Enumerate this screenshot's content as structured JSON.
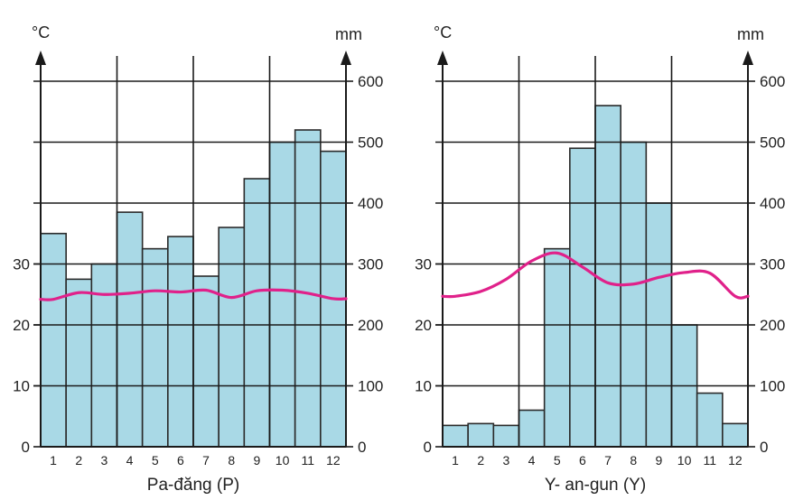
{
  "colors": {
    "bar_fill": "#a9d9e6",
    "bar_stroke": "#2a2a2a",
    "temperature_line": "#e0218a",
    "grid": "#1a1a1a",
    "text": "#222222"
  },
  "chart_data": [
    {
      "type": "bar+line",
      "xlabel": "Pa-đăng (P)",
      "left_unit": "°C",
      "right_unit": "mm",
      "left_ticks": [
        "0",
        "10",
        "20",
        "30"
      ],
      "right_ticks": [
        "0",
        "100",
        "200",
        "300",
        "400",
        "500",
        "600"
      ],
      "ylim_left": [
        0,
        60
      ],
      "ylim_right": [
        0,
        600
      ],
      "grid": true,
      "categories": [
        "1",
        "2",
        "3",
        "4",
        "5",
        "6",
        "7",
        "8",
        "9",
        "10",
        "11",
        "12"
      ],
      "precipitation_mm": [
        350,
        275,
        300,
        385,
        325,
        345,
        280,
        360,
        440,
        500,
        520,
        485
      ],
      "temperature_c": [
        24.2,
        25.3,
        25.0,
        25.2,
        25.6,
        25.4,
        25.7,
        24.5,
        25.6,
        25.7,
        25.2,
        24.3
      ]
    },
    {
      "type": "bar+line",
      "xlabel": "Y- an-gun (Y)",
      "left_unit": "°C",
      "right_unit": "mm",
      "left_ticks": [
        "0",
        "10",
        "20",
        "30"
      ],
      "right_ticks": [
        "0",
        "100",
        "200",
        "300",
        "400",
        "500",
        "600"
      ],
      "ylim_left": [
        0,
        60
      ],
      "ylim_right": [
        0,
        600
      ],
      "grid": true,
      "categories": [
        "1",
        "2",
        "3",
        "4",
        "5",
        "6",
        "7",
        "8",
        "9",
        "10",
        "11",
        "12"
      ],
      "precipitation_mm": [
        35,
        38,
        35,
        60,
        325,
        490,
        560,
        500,
        400,
        200,
        88,
        38
      ],
      "temperature_c": [
        24.7,
        25.5,
        27.5,
        30.5,
        31.8,
        29.5,
        26.9,
        26.7,
        27.8,
        28.6,
        28.5,
        24.7
      ]
    }
  ]
}
